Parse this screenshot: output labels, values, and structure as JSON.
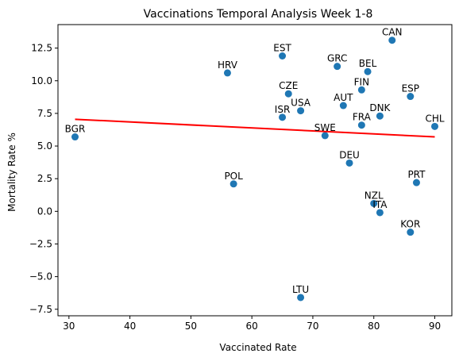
{
  "chart_data": {
    "type": "scatter",
    "title": "Vaccinations Temporal Analysis Week 1-8",
    "xlabel": "Vaccinated Rate",
    "ylabel": "Mortality Rate %",
    "xlim": [
      28.2,
      92.8
    ],
    "ylim": [
      -8.0,
      14.3
    ],
    "xticks": [
      30,
      40,
      50,
      60,
      70,
      80,
      90
    ],
    "yticks": [
      -7.5,
      -5.0,
      -2.5,
      0.0,
      2.5,
      5.0,
      7.5,
      10.0,
      12.5
    ],
    "xtick_labels": [
      "30",
      "40",
      "50",
      "60",
      "70",
      "80",
      "90"
    ],
    "ytick_labels": [
      "−7.5",
      "−5.0",
      "−2.5",
      "0.0",
      "2.5",
      "5.0",
      "7.5",
      "10.0",
      "12.5"
    ],
    "grid": false,
    "point_color": "#1f77b4",
    "trend_color": "#ff0000",
    "points": [
      {
        "label": "BGR",
        "x": 31,
        "y": 5.7
      },
      {
        "label": "HRV",
        "x": 56,
        "y": 10.6
      },
      {
        "label": "POL",
        "x": 57,
        "y": 2.1
      },
      {
        "label": "EST",
        "x": 65,
        "y": 11.9
      },
      {
        "label": "ISR",
        "x": 65,
        "y": 7.2
      },
      {
        "label": "CZE",
        "x": 66,
        "y": 9.0
      },
      {
        "label": "USA",
        "x": 68,
        "y": 7.7
      },
      {
        "label": "LTU",
        "x": 68,
        "y": -6.6
      },
      {
        "label": "SWE",
        "x": 72,
        "y": 5.8
      },
      {
        "label": "GRC",
        "x": 74,
        "y": 11.1
      },
      {
        "label": "AUT",
        "x": 75,
        "y": 8.1
      },
      {
        "label": "DEU",
        "x": 76,
        "y": 3.7
      },
      {
        "label": "FIN",
        "x": 78,
        "y": 9.3
      },
      {
        "label": "FRA",
        "x": 78,
        "y": 6.6
      },
      {
        "label": "BEL",
        "x": 79,
        "y": 10.7
      },
      {
        "label": "NZL",
        "x": 80,
        "y": 0.6
      },
      {
        "label": "DNK",
        "x": 81,
        "y": 7.3
      },
      {
        "label": "ITA",
        "x": 81,
        "y": -0.1
      },
      {
        "label": "CAN",
        "x": 83,
        "y": 13.1
      },
      {
        "label": "ESP",
        "x": 86,
        "y": 8.8
      },
      {
        "label": "KOR",
        "x": 86,
        "y": -1.6
      },
      {
        "label": "PRT",
        "x": 87,
        "y": 2.2
      },
      {
        "label": "CHL",
        "x": 90,
        "y": 6.5
      }
    ],
    "trendline": {
      "x": [
        31,
        90
      ],
      "y": [
        7.05,
        5.7
      ]
    }
  }
}
